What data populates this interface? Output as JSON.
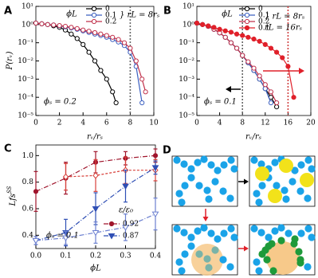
{
  "chart_data": [
    {
      "type": "line",
      "panel": "A",
      "log_y": true,
      "x_label": "rᵥ/rₛ",
      "y_label": "P(rᵥ)",
      "xlim": [
        0,
        10
      ],
      "xticks": [
        0,
        2,
        4,
        6,
        8,
        10
      ],
      "ylim": [
        1e-05,
        10
      ],
      "yticks": [
        {
          "value": 10,
          "label": "10¹"
        },
        {
          "value": 1,
          "label": "10⁰"
        },
        {
          "value": 0.1,
          "label": "10⁻¹"
        },
        {
          "value": 0.01,
          "label": "10⁻²"
        },
        {
          "value": 0.001,
          "label": "10⁻³"
        },
        {
          "value": 0.0001,
          "label": "10⁻⁴"
        },
        {
          "value": 1e-05,
          "label": "10⁻⁵"
        }
      ],
      "legend_title": "ϕL",
      "legend_notes": [
        "} rL = 8rₛ"
      ],
      "annotations": [
        "ϕₛ = 0.2"
      ],
      "vlines": [
        {
          "x": 8,
          "color": "#666666"
        }
      ],
      "series": [
        {
          "name": "0",
          "color": "#000000",
          "marker": "circle",
          "filled": false,
          "x": [
            0,
            0.5,
            1,
            1.5,
            2,
            2.5,
            3,
            3.5,
            4,
            4.5,
            5,
            5.5,
            6,
            6.5,
            6.8
          ],
          "values": [
            1.2,
            1.1,
            1.0,
            0.85,
            0.7,
            0.5,
            0.3,
            0.17,
            0.08,
            0.03,
            0.01,
            0.003,
            0.001,
            0.0002,
            5e-05
          ]
        },
        {
          "name": "0.1",
          "color": "#3b5fc0",
          "marker": "circle",
          "filled": false,
          "x": [
            0,
            0.5,
            1,
            1.5,
            2,
            2.5,
            3,
            3.5,
            4,
            4.5,
            5,
            5.5,
            6,
            6.5,
            7,
            7.5,
            8,
            8.5,
            9
          ],
          "values": [
            1.2,
            1.1,
            1.0,
            0.95,
            0.85,
            0.75,
            0.65,
            0.55,
            0.45,
            0.37,
            0.3,
            0.25,
            0.2,
            0.15,
            0.11,
            0.07,
            0.03,
            0.005,
            5e-05
          ]
        },
        {
          "name": "0.2",
          "color": "#c0304a",
          "marker": "circle",
          "filled": false,
          "x": [
            0,
            0.5,
            1,
            1.5,
            2,
            2.5,
            3,
            3.5,
            4,
            4.5,
            5,
            5.5,
            6,
            6.5,
            7,
            7.5,
            8,
            8.5,
            9,
            9.3
          ],
          "values": [
            1.2,
            1.1,
            1.0,
            0.95,
            0.88,
            0.8,
            0.7,
            0.6,
            0.5,
            0.43,
            0.36,
            0.3,
            0.25,
            0.2,
            0.15,
            0.1,
            0.05,
            0.01,
            0.001,
            0.0002
          ]
        }
      ]
    },
    {
      "type": "line",
      "panel": "B",
      "log_y": true,
      "x_label": "rᵥ/rₛ",
      "xlim": [
        0,
        20
      ],
      "xticks": [
        0,
        4,
        8,
        12,
        16,
        20
      ],
      "ylim": [
        1e-05,
        10
      ],
      "yticks": [
        {
          "value": 10,
          "label": "10¹"
        },
        {
          "value": 1,
          "label": "10⁰"
        },
        {
          "value": 0.1,
          "label": "10⁻¹"
        },
        {
          "value": 0.01,
          "label": "10⁻²"
        },
        {
          "value": 0.001,
          "label": "10⁻³"
        },
        {
          "value": 0.0001,
          "label": "10⁻⁴"
        },
        {
          "value": 1e-05,
          "label": "10⁻⁵"
        }
      ],
      "legend_title": "ϕL",
      "legend_notes": [
        "} rL = 8rₛ",
        "rL = 16rₛ"
      ],
      "annotations": [
        "ϕₛ = 0.1"
      ],
      "vlines": [
        {
          "x": 8,
          "color": "#666666"
        },
        {
          "x": 16,
          "color": "#d04040"
        }
      ],
      "series": [
        {
          "name": "0",
          "color": "#000000",
          "marker": "circle",
          "filled": false,
          "x": [
            0,
            1,
            2,
            3,
            4,
            5,
            6,
            7,
            8,
            9,
            10,
            11,
            12,
            13,
            14
          ],
          "values": [
            1.2,
            1.0,
            0.8,
            0.55,
            0.35,
            0.2,
            0.1,
            0.05,
            0.02,
            0.008,
            0.003,
            0.001,
            0.0003,
            0.0001,
            3e-05
          ]
        },
        {
          "name": "0.1",
          "color": "#3b5fc0",
          "marker": "circle",
          "filled": false,
          "x": [
            0,
            1,
            2,
            3,
            4,
            5,
            6,
            7,
            8,
            9,
            10,
            11,
            12,
            13
          ],
          "values": [
            1.2,
            1.0,
            0.8,
            0.55,
            0.35,
            0.2,
            0.1,
            0.05,
            0.02,
            0.008,
            0.003,
            0.001,
            0.0003,
            5e-05
          ]
        },
        {
          "name": "0.2",
          "color": "#c0304a",
          "marker": "circle",
          "filled": false,
          "x": [
            0,
            1,
            2,
            3,
            4,
            5,
            6,
            7,
            8,
            9,
            10,
            11,
            12,
            13,
            14
          ],
          "values": [
            1.2,
            1.0,
            0.8,
            0.55,
            0.35,
            0.2,
            0.1,
            0.05,
            0.02,
            0.009,
            0.004,
            0.0015,
            0.0005,
            0.0002,
            5e-05
          ]
        },
        {
          "name": "0.1",
          "color": "#e0202a",
          "marker": "circle",
          "filled": true,
          "x": [
            0,
            1,
            2,
            3,
            4,
            5,
            6,
            7,
            8,
            9,
            10,
            11,
            12,
            13,
            14,
            15,
            16,
            17
          ],
          "values": [
            1.2,
            1.0,
            0.85,
            0.7,
            0.55,
            0.45,
            0.38,
            0.3,
            0.25,
            0.2,
            0.16,
            0.12,
            0.08,
            0.05,
            0.03,
            0.015,
            0.005,
            0.0001
          ]
        }
      ]
    },
    {
      "type": "line",
      "panel": "C",
      "log_y": false,
      "x_label": "ϕL",
      "y_label": "Lfs",
      "y_label_sup": "SS",
      "x": [
        0,
        0.1,
        0.2,
        0.3,
        0.4
      ],
      "xlim": [
        0,
        0.4
      ],
      "xticks": [
        {
          "value": 0,
          "label": "0.0"
        },
        0.1,
        0.2,
        0.3,
        0.4
      ],
      "ylim": [
        0.3,
        1.08
      ],
      "yticks": [
        0.4,
        0.6,
        0.8,
        {
          "value": 1,
          "label": "1.0"
        }
      ],
      "legend_title": "ε/ε₀",
      "annotations": [
        "ϕₛ = 0.1"
      ],
      "series": [
        {
          "name": "0.92",
          "color": "#a0152c",
          "marker": "circle",
          "filled": true,
          "line_style": "dashdot",
          "values": [
            0.73,
            0.83,
            0.95,
            0.98,
            1.0
          ],
          "errors": [
            0.15,
            0.12,
            0.08,
            0.05,
            0.05
          ]
        },
        {
          "color": "#d8403a",
          "marker": "diamond",
          "filled": false,
          "line_style": "dashed",
          "values": [
            null,
            0.84,
            0.85,
            0.89,
            0.89
          ],
          "errors": [
            null,
            0.1,
            0.12,
            0.1,
            0.08
          ]
        },
        {
          "name": "0.87",
          "color": "#2f4fb5",
          "marker": "triangle",
          "filled": true,
          "line_style": "dashdot",
          "values": [
            0.36,
            0.42,
            0.6,
            0.77,
            0.91
          ],
          "errors": [
            0.03,
            0.1,
            0.12,
            0.12,
            0.05
          ]
        },
        {
          "color": "#6b7fd0",
          "marker": "triangle",
          "filled": false,
          "line_style": "dashdot",
          "values": [
            0.36,
            0.38,
            0.42,
            0.46,
            0.56
          ],
          "errors": [
            0.03,
            0.05,
            0.08,
            0.1,
            0.12
          ]
        }
      ]
    }
  ],
  "diagram": {
    "panel": "D"
  }
}
